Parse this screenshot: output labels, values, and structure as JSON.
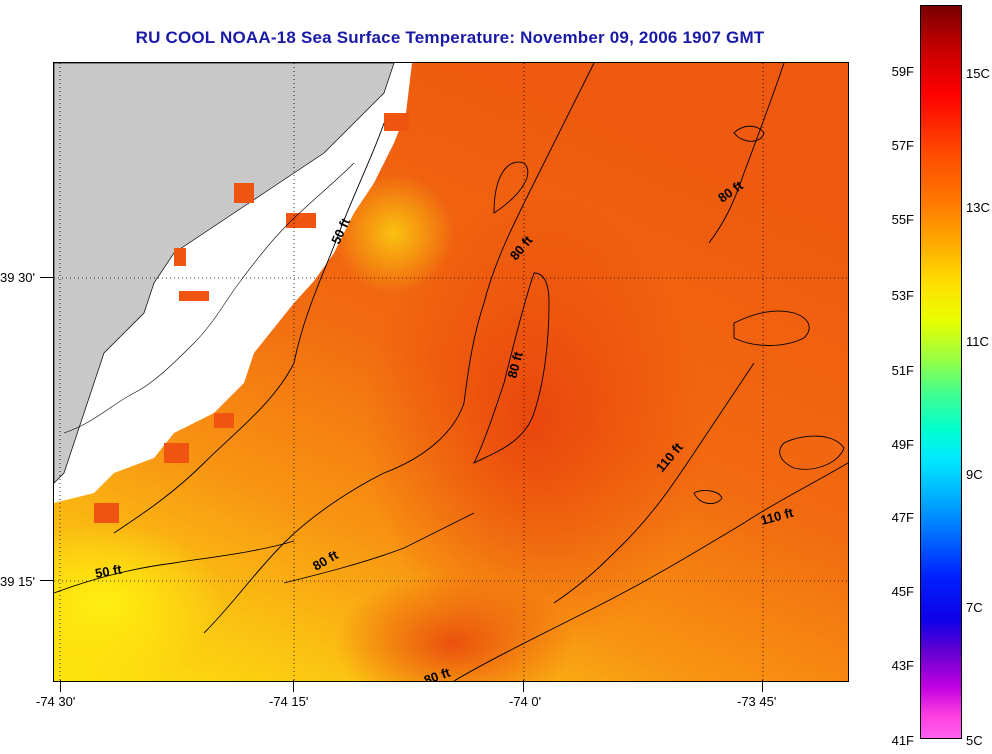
{
  "title": "RU COOL  NOAA-18  Sea Surface Temperature:  November 09, 2006 1907 GMT",
  "x_axis": {
    "ticks": [
      "-74 30'",
      "-74 15'",
      "-74 0'",
      "-73 45'"
    ]
  },
  "y_axis": {
    "ticks": [
      "39 30'",
      "39 15'"
    ]
  },
  "contour_labels": [
    "50 ft",
    "80 ft",
    "80 ft",
    "80 ft",
    "80 ft",
    "50 ft",
    "80 ft",
    "110 ft",
    "110 ft"
  ],
  "legend": {
    "fahrenheit": [
      "59F",
      "57F",
      "55F",
      "53F",
      "51F",
      "49F",
      "47F",
      "45F",
      "43F",
      "41F"
    ],
    "celsius": [
      "15C",
      "13C",
      "11C",
      "9C",
      "7C",
      "5C"
    ]
  },
  "colors": {
    "land": "#c8c8c8",
    "no_data": "#ffffff",
    "warm": "#f05a10",
    "mid": "#f8a010",
    "cool": "#fce010"
  }
}
